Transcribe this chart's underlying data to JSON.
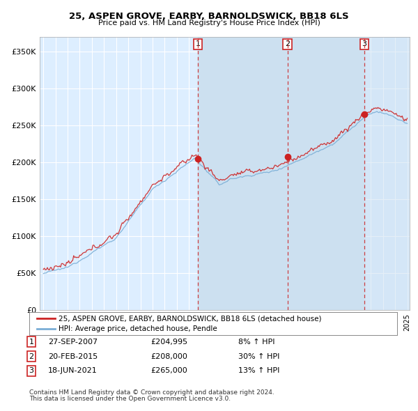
{
  "title": "25, ASPEN GROVE, EARBY, BARNOLDSWICK, BB18 6LS",
  "subtitle": "Price paid vs. HM Land Registry's House Price Index (HPI)",
  "ylim": [
    0,
    370000
  ],
  "yticks": [
    0,
    50000,
    100000,
    150000,
    200000,
    250000,
    300000,
    350000
  ],
  "ytick_labels": [
    "£0",
    "£50K",
    "£100K",
    "£150K",
    "£200K",
    "£250K",
    "£300K",
    "£350K"
  ],
  "hpi_color": "#7aaed6",
  "price_color": "#cc2222",
  "vline_color": "#cc2222",
  "shade_color": "#d6e8f5",
  "background_color": "#ffffff",
  "plot_bg_color": "#ddeeff",
  "grid_color": "#ffffff",
  "transactions": [
    {
      "num": 1,
      "date_str": "27-SEP-2007",
      "year": 2007.74,
      "price": 204995,
      "pct": "8%",
      "dir": "↑"
    },
    {
      "num": 2,
      "date_str": "20-FEB-2015",
      "year": 2015.13,
      "price": 208000,
      "pct": "30%",
      "dir": "↑"
    },
    {
      "num": 3,
      "date_str": "18-JUN-2021",
      "year": 2021.46,
      "price": 265000,
      "pct": "13%",
      "dir": "↑"
    }
  ],
  "legend_house_label": "25, ASPEN GROVE, EARBY, BARNOLDSWICK, BB18 6LS (detached house)",
  "legend_hpi_label": "HPI: Average price, detached house, Pendle",
  "footnote1": "Contains HM Land Registry data © Crown copyright and database right 2024.",
  "footnote2": "This data is licensed under the Open Government Licence v3.0."
}
